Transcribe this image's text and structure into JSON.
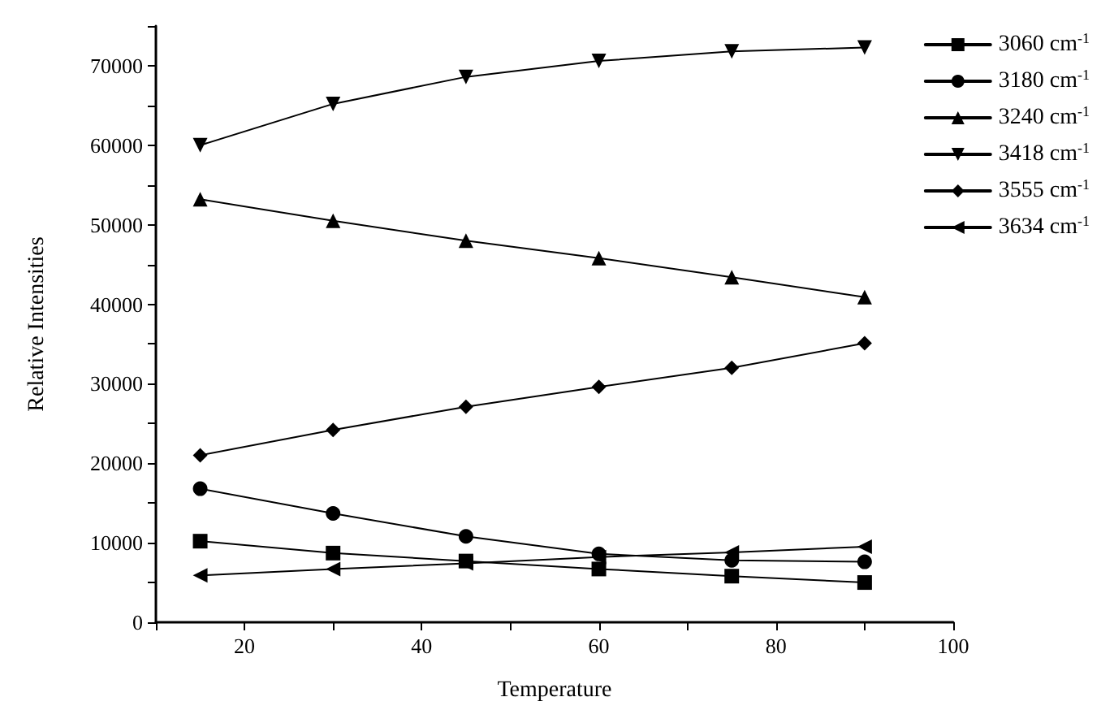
{
  "chart_data": {
    "type": "line",
    "xlabel": "Temperature",
    "ylabel": "Relative Intensities",
    "x": [
      15,
      30,
      45,
      60,
      75,
      90
    ],
    "series": [
      {
        "name": "3060 cm$^{-1}$",
        "color": "#000000",
        "marker": "square",
        "values": [
          10200,
          8700,
          7700,
          6700,
          5800,
          5000
        ]
      },
      {
        "name": "3180 cm$^{-1}$",
        "color": "#000000",
        "marker": "circle",
        "values": [
          16800,
          13700,
          10800,
          8600,
          7800,
          7600
        ]
      },
      {
        "name": "3240 cm$^{-1}$",
        "color": "#000000",
        "marker": "triangle",
        "values": [
          53200,
          50500,
          48000,
          45800,
          43400,
          40900
        ]
      },
      {
        "name": "3418 cm$^{-1}$",
        "color": "#000000",
        "marker": "triangle-down",
        "values": [
          60000,
          65200,
          68600,
          70600,
          71800,
          72300
        ]
      },
      {
        "name": "3555 cm$^{-1}$",
        "color": "#000000",
        "marker": "diamond",
        "values": [
          21000,
          24200,
          27100,
          29600,
          32000,
          35100
        ]
      },
      {
        "name": "3634 cm$^{-1}$",
        "color": "#000000",
        "marker": "triangle-left",
        "values": [
          5900,
          6700,
          7400,
          8200,
          8800,
          9500
        ]
      }
    ],
    "xlim": [
      10,
      100
    ],
    "xticks": [
      {
        "value": 10,
        "label": null
      },
      20,
      {
        "value": 30,
        "label": null
      },
      40,
      {
        "value": 50,
        "label": null
      },
      60,
      {
        "value": 70,
        "label": null
      },
      80,
      {
        "value": 90,
        "label": null
      },
      100
    ],
    "ylim": [
      0,
      75000
    ],
    "yticks": [
      0,
      {
        "value": 5000,
        "label": null
      },
      10000,
      {
        "value": 15000,
        "label": null
      },
      20000,
      {
        "value": 25000,
        "label": null
      },
      30000,
      {
        "value": 35000,
        "label": null
      },
      40000,
      {
        "value": 45000,
        "label": null
      },
      50000,
      {
        "value": 55000,
        "label": null
      },
      60000,
      {
        "value": 65000,
        "label": null
      },
      70000,
      {
        "value": 75000,
        "label": null
      }
    ],
    "grid": false,
    "legend": "top right",
    "line_style": "solid"
  }
}
